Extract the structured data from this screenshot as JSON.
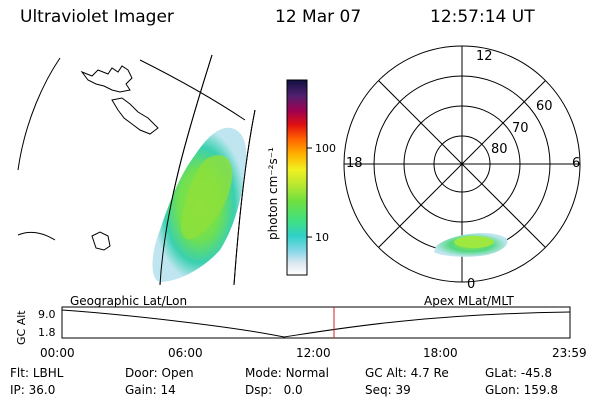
{
  "header": {
    "instrument": "Ultraviolet Imager",
    "date": "12 Mar 07",
    "time": "12:57:14 UT"
  },
  "colorbar": {
    "unit_label": "photon cm⁻²s⁻¹",
    "ticks": [
      "100",
      "10"
    ]
  },
  "polar_plot": {
    "mlt_labels": {
      "top": "12",
      "left": "18",
      "right": "6",
      "bottom": "0"
    },
    "lat_labels": [
      "60",
      "70",
      "80"
    ]
  },
  "panel_labels": {
    "left": "Geographic Lat/Lon",
    "right": "Apex MLat/MLT"
  },
  "altitude_plot": {
    "ylabel": "GC Alt",
    "yticks": [
      "9.0",
      "1.8"
    ],
    "xticks": [
      "00:00",
      "06:00",
      "12:00",
      "18:00",
      "23:59"
    ]
  },
  "info": {
    "flt_label": "Flt:",
    "flt_value": "LBHL",
    "ip_label": "IP:",
    "ip_value": "36.0",
    "door_label": "Door:",
    "door_value": "Open",
    "gain_label": "Gain:",
    "gain_value": "14",
    "mode_label": "Mode:",
    "mode_value": "Normal",
    "dsp_label": "Dsp:",
    "dsp_value": "0.0",
    "gcalt_label": "GC Alt:",
    "gcalt_value": "4.7 Re",
    "seq_label": "Seq:",
    "seq_value": "39",
    "glat_label": "GLat:",
    "glat_value": "-45.8",
    "glon_label": "GLon:",
    "glon_value": "159.8"
  },
  "colors": {
    "marker": "#d42020"
  }
}
